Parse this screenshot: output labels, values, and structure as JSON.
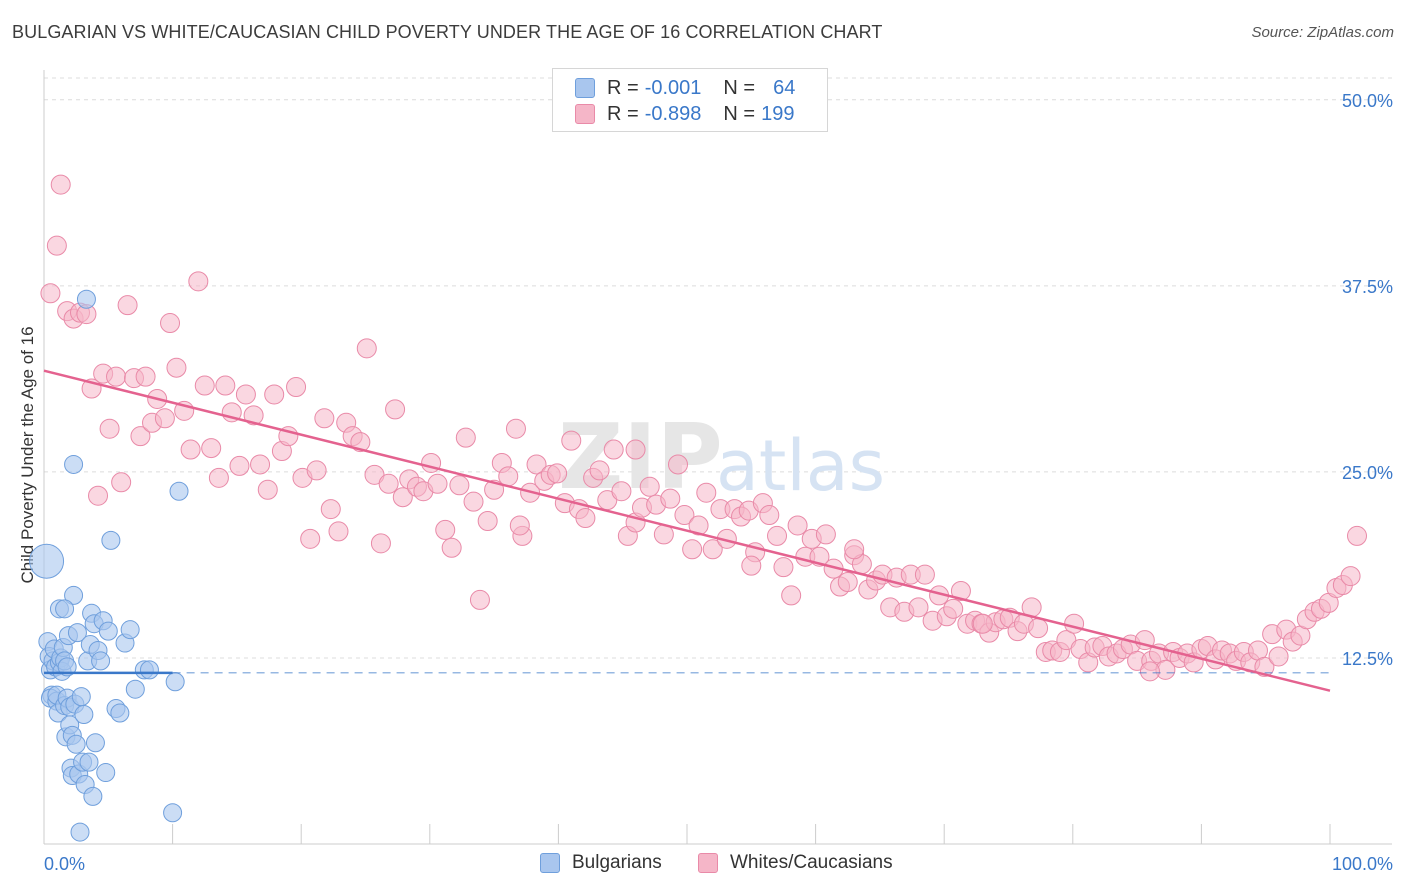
{
  "header": {
    "title": "BULGARIAN VS WHITE/CAUCASIAN CHILD POVERTY UNDER THE AGE OF 16 CORRELATION CHART",
    "source": "Source: ZipAtlas.com"
  },
  "watermark": {
    "zip": "ZIP",
    "atlas": "atlas"
  },
  "legend": {
    "rows": [
      {
        "r_label": "R =",
        "r_value": "-0.001",
        "n_label": "N =",
        "n_value": "64",
        "color": "#a9c6ee"
      },
      {
        "r_label": "R =",
        "r_value": "-0.898",
        "n_label": "N =",
        "n_value": "199",
        "color": "#f5b6c8"
      }
    ]
  },
  "bottom_legend": {
    "items": [
      {
        "label": "Bulgarians",
        "color": "#a9c6ee"
      },
      {
        "label": "Whites/Caucasians",
        "color": "#f5b6c8"
      }
    ]
  },
  "colors": {
    "blue_fill": "#a9c6ee",
    "blue_stroke": "#6f9fdc",
    "blue_line": "#3a78c9",
    "pink_fill": "#f5b6c8",
    "pink_stroke": "#e98aa8",
    "pink_line": "#e4628f",
    "grid": "#dcdcdc",
    "tick_text": "#3a78c9"
  },
  "chart_data": {
    "type": "scatter",
    "title": "BULGARIAN VS WHITE/CAUCASIAN CHILD POVERTY UNDER THE AGE OF 16 CORRELATION CHART",
    "xlabel": "",
    "ylabel": "Child Poverty Under the Age of 16",
    "xlim": [
      0,
      100
    ],
    "ylim": [
      0,
      52
    ],
    "x_tick_labels": [
      "0.0%",
      "100.0%"
    ],
    "y_ticks": [
      12.5,
      25.0,
      37.5,
      50.0
    ],
    "y_tick_labels": [
      "12.5%",
      "25.0%",
      "37.5%",
      "50.0%"
    ],
    "grid": true,
    "legend_position": "top-center",
    "series": [
      {
        "name": "Bulgarians",
        "r": -0.001,
        "n": 64,
        "trend": {
          "x": [
            0,
            10
          ],
          "y": [
            11.5,
            11.5
          ],
          "dashed_extension_to": 100
        },
        "points": [
          [
            0.2,
            19.0
          ],
          [
            0.3,
            13.6
          ],
          [
            0.4,
            12.6
          ],
          [
            0.5,
            11.7
          ],
          [
            0.6,
            10.0
          ],
          [
            0.5,
            9.8
          ],
          [
            0.7,
            12.3
          ],
          [
            0.8,
            13.1
          ],
          [
            0.9,
            11.9
          ],
          [
            1.0,
            9.6
          ],
          [
            1.0,
            10.0
          ],
          [
            1.1,
            8.8
          ],
          [
            1.2,
            12.2
          ],
          [
            1.2,
            15.8
          ],
          [
            1.3,
            12.5
          ],
          [
            1.4,
            11.6
          ],
          [
            1.5,
            13.2
          ],
          [
            1.6,
            12.3
          ],
          [
            1.6,
            9.3
          ],
          [
            1.7,
            7.2
          ],
          [
            1.8,
            11.9
          ],
          [
            1.8,
            9.8
          ],
          [
            1.9,
            14.0
          ],
          [
            2.0,
            9.2
          ],
          [
            2.0,
            8.0
          ],
          [
            2.1,
            5.1
          ],
          [
            2.2,
            4.6
          ],
          [
            2.2,
            7.3
          ],
          [
            2.3,
            16.7
          ],
          [
            2.3,
            25.5
          ],
          [
            2.4,
            9.4
          ],
          [
            2.5,
            6.7
          ],
          [
            2.6,
            14.2
          ],
          [
            2.7,
            4.7
          ],
          [
            2.8,
            0.8
          ],
          [
            2.9,
            9.9
          ],
          [
            3.0,
            5.5
          ],
          [
            3.1,
            8.7
          ],
          [
            3.2,
            4.0
          ],
          [
            3.3,
            36.6
          ],
          [
            3.4,
            12.3
          ],
          [
            3.5,
            5.5
          ],
          [
            3.6,
            13.4
          ],
          [
            3.7,
            15.5
          ],
          [
            3.8,
            3.2
          ],
          [
            3.9,
            14.8
          ],
          [
            4.0,
            6.8
          ],
          [
            4.2,
            13.0
          ],
          [
            4.4,
            12.3
          ],
          [
            4.6,
            15.0
          ],
          [
            4.8,
            4.8
          ],
          [
            5.0,
            14.3
          ],
          [
            5.2,
            20.4
          ],
          [
            5.6,
            9.1
          ],
          [
            5.9,
            8.8
          ],
          [
            6.3,
            13.5
          ],
          [
            6.7,
            14.4
          ],
          [
            7.1,
            10.4
          ],
          [
            7.8,
            11.7
          ],
          [
            8.2,
            11.7
          ],
          [
            10.5,
            23.7
          ],
          [
            10.2,
            10.9
          ],
          [
            10.0,
            2.1
          ],
          [
            1.6,
            15.8
          ]
        ]
      },
      {
        "name": "Whites/Caucasians",
        "r": -0.898,
        "n": 199,
        "trend": {
          "x": [
            0,
            100
          ],
          "y": [
            31.8,
            10.3
          ]
        },
        "points": [
          [
            0.5,
            37.0
          ],
          [
            1.0,
            40.2
          ],
          [
            1.3,
            44.3
          ],
          [
            1.8,
            35.8
          ],
          [
            2.3,
            35.3
          ],
          [
            2.8,
            35.7
          ],
          [
            3.3,
            35.6
          ],
          [
            3.7,
            30.6
          ],
          [
            4.2,
            23.4
          ],
          [
            4.6,
            31.6
          ],
          [
            5.1,
            27.9
          ],
          [
            5.6,
            31.4
          ],
          [
            6.0,
            24.3
          ],
          [
            6.5,
            36.2
          ],
          [
            7.0,
            31.3
          ],
          [
            7.5,
            27.4
          ],
          [
            7.9,
            31.4
          ],
          [
            8.4,
            28.3
          ],
          [
            8.8,
            29.9
          ],
          [
            9.4,
            28.6
          ],
          [
            9.8,
            35.0
          ],
          [
            10.3,
            32.0
          ],
          [
            10.9,
            29.1
          ],
          [
            11.4,
            26.5
          ],
          [
            12.0,
            37.8
          ],
          [
            12.5,
            30.8
          ],
          [
            13.0,
            26.6
          ],
          [
            13.6,
            24.6
          ],
          [
            14.1,
            30.8
          ],
          [
            14.6,
            29.0
          ],
          [
            15.2,
            25.4
          ],
          [
            15.7,
            30.2
          ],
          [
            16.3,
            28.8
          ],
          [
            16.8,
            25.5
          ],
          [
            17.4,
            23.8
          ],
          [
            17.9,
            30.2
          ],
          [
            18.5,
            26.4
          ],
          [
            19.0,
            27.4
          ],
          [
            19.6,
            30.7
          ],
          [
            20.1,
            24.6
          ],
          [
            20.7,
            20.5
          ],
          [
            21.2,
            25.1
          ],
          [
            21.8,
            28.6
          ],
          [
            22.3,
            22.5
          ],
          [
            22.9,
            21.0
          ],
          [
            23.5,
            28.3
          ],
          [
            24.0,
            27.4
          ],
          [
            24.6,
            27.0
          ],
          [
            25.1,
            33.3
          ],
          [
            25.7,
            24.8
          ],
          [
            26.2,
            20.2
          ],
          [
            26.8,
            24.2
          ],
          [
            27.3,
            29.2
          ],
          [
            27.9,
            23.3
          ],
          [
            28.4,
            24.5
          ],
          [
            29.0,
            24.0
          ],
          [
            29.5,
            23.7
          ],
          [
            30.1,
            25.6
          ],
          [
            30.6,
            24.2
          ],
          [
            31.2,
            21.1
          ],
          [
            31.7,
            19.9
          ],
          [
            32.3,
            24.1
          ],
          [
            32.8,
            27.3
          ],
          [
            33.4,
            23.0
          ],
          [
            33.9,
            16.4
          ],
          [
            34.5,
            21.7
          ],
          [
            35.0,
            23.8
          ],
          [
            35.6,
            25.6
          ],
          [
            36.1,
            24.7
          ],
          [
            36.7,
            27.9
          ],
          [
            37.2,
            20.7
          ],
          [
            37.8,
            23.6
          ],
          [
            38.3,
            25.5
          ],
          [
            38.9,
            24.4
          ],
          [
            39.4,
            24.8
          ],
          [
            39.9,
            24.9
          ],
          [
            40.5,
            22.9
          ],
          [
            41.0,
            27.1
          ],
          [
            41.6,
            22.5
          ],
          [
            42.1,
            21.9
          ],
          [
            42.7,
            24.6
          ],
          [
            43.2,
            25.1
          ],
          [
            43.8,
            23.1
          ],
          [
            44.3,
            26.5
          ],
          [
            44.9,
            23.7
          ],
          [
            45.4,
            20.7
          ],
          [
            46.0,
            21.6
          ],
          [
            46.5,
            22.6
          ],
          [
            47.1,
            24.0
          ],
          [
            47.6,
            22.8
          ],
          [
            48.2,
            20.8
          ],
          [
            48.7,
            23.2
          ],
          [
            49.3,
            25.5
          ],
          [
            49.8,
            22.1
          ],
          [
            50.4,
            19.8
          ],
          [
            50.9,
            21.4
          ],
          [
            51.5,
            23.6
          ],
          [
            52.0,
            19.8
          ],
          [
            52.6,
            22.5
          ],
          [
            53.1,
            20.5
          ],
          [
            53.7,
            22.5
          ],
          [
            54.2,
            22.0
          ],
          [
            54.8,
            22.4
          ],
          [
            55.3,
            19.6
          ],
          [
            55.9,
            22.9
          ],
          [
            56.4,
            22.1
          ],
          [
            57.0,
            20.7
          ],
          [
            57.5,
            18.6
          ],
          [
            58.1,
            16.7
          ],
          [
            58.6,
            21.4
          ],
          [
            59.2,
            19.3
          ],
          [
            59.7,
            20.5
          ],
          [
            60.3,
            19.3
          ],
          [
            60.8,
            20.8
          ],
          [
            61.4,
            18.5
          ],
          [
            61.9,
            17.3
          ],
          [
            62.5,
            17.6
          ],
          [
            63.0,
            19.4
          ],
          [
            63.6,
            18.8
          ],
          [
            64.1,
            17.1
          ],
          [
            64.7,
            17.7
          ],
          [
            65.2,
            18.1
          ],
          [
            65.8,
            15.9
          ],
          [
            66.3,
            17.9
          ],
          [
            66.9,
            15.6
          ],
          [
            67.4,
            18.1
          ],
          [
            68.0,
            15.9
          ],
          [
            68.5,
            18.1
          ],
          [
            69.1,
            15.0
          ],
          [
            69.6,
            16.7
          ],
          [
            70.2,
            15.3
          ],
          [
            70.7,
            15.8
          ],
          [
            71.3,
            17.0
          ],
          [
            71.8,
            14.8
          ],
          [
            72.4,
            15.0
          ],
          [
            72.9,
            14.8
          ],
          [
            73.5,
            14.2
          ],
          [
            74.0,
            14.9
          ],
          [
            74.6,
            15.1
          ],
          [
            75.1,
            15.2
          ],
          [
            75.7,
            14.3
          ],
          [
            76.2,
            14.8
          ],
          [
            76.8,
            15.9
          ],
          [
            77.3,
            14.5
          ],
          [
            77.9,
            12.9
          ],
          [
            78.4,
            13.0
          ],
          [
            79.0,
            12.9
          ],
          [
            79.5,
            13.7
          ],
          [
            80.1,
            14.8
          ],
          [
            80.6,
            13.1
          ],
          [
            81.2,
            12.2
          ],
          [
            81.7,
            13.2
          ],
          [
            82.3,
            13.3
          ],
          [
            82.8,
            12.6
          ],
          [
            83.4,
            12.8
          ],
          [
            83.9,
            13.1
          ],
          [
            84.5,
            13.4
          ],
          [
            85.0,
            12.3
          ],
          [
            85.6,
            13.7
          ],
          [
            86.1,
            12.3
          ],
          [
            86.7,
            12.8
          ],
          [
            87.2,
            11.7
          ],
          [
            87.8,
            12.9
          ],
          [
            88.3,
            12.5
          ],
          [
            88.9,
            12.8
          ],
          [
            89.4,
            12.2
          ],
          [
            90.0,
            13.1
          ],
          [
            90.5,
            13.3
          ],
          [
            91.1,
            12.4
          ],
          [
            91.6,
            13.0
          ],
          [
            92.2,
            12.8
          ],
          [
            92.7,
            12.3
          ],
          [
            93.3,
            12.9
          ],
          [
            93.8,
            12.2
          ],
          [
            94.4,
            13.0
          ],
          [
            94.9,
            11.9
          ],
          [
            95.5,
            14.1
          ],
          [
            96.0,
            12.6
          ],
          [
            96.6,
            14.4
          ],
          [
            97.1,
            13.6
          ],
          [
            97.7,
            14.0
          ],
          [
            98.2,
            15.1
          ],
          [
            98.8,
            15.6
          ],
          [
            99.3,
            15.8
          ],
          [
            99.9,
            16.2
          ],
          [
            100.5,
            17.2
          ],
          [
            101.0,
            17.4
          ],
          [
            101.6,
            18.0
          ],
          [
            102.1,
            20.7
          ],
          [
            73.0,
            14.8
          ],
          [
            63.0,
            19.8
          ],
          [
            55.0,
            18.7
          ],
          [
            46.0,
            26.5
          ],
          [
            37.0,
            21.4
          ],
          [
            86.0,
            11.6
          ]
        ]
      }
    ]
  }
}
